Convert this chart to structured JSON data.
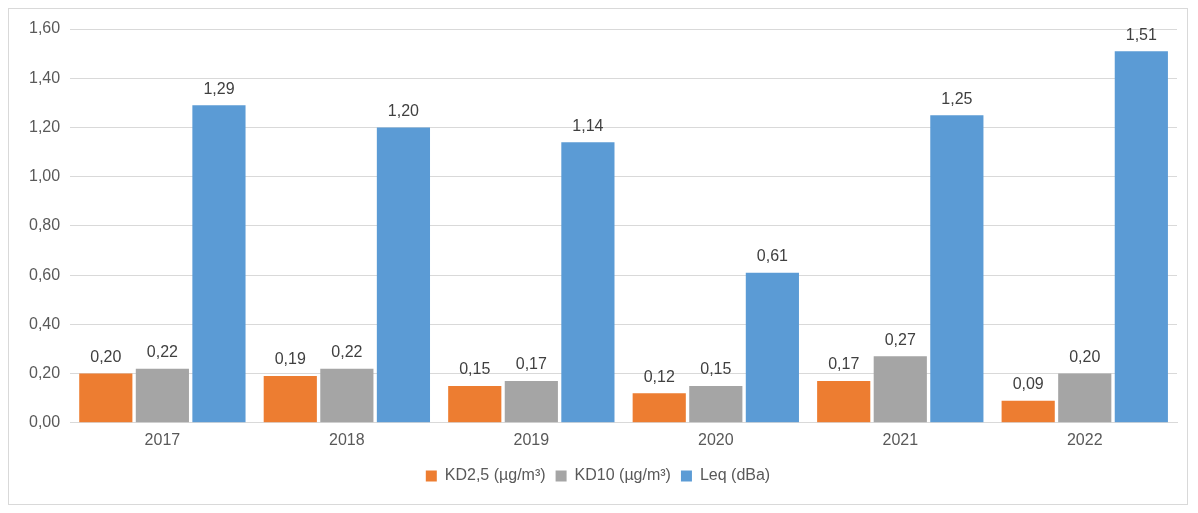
{
  "chart_data": {
    "type": "bar",
    "categories": [
      "2017",
      "2018",
      "2019",
      "2020",
      "2021",
      "2022"
    ],
    "series": [
      {
        "name": "KD2,5 (µg/m³)",
        "color": "#ed7d31",
        "values": [
          0.2,
          0.19,
          0.15,
          0.12,
          0.17,
          0.09
        ],
        "value_labels": [
          "0,20",
          "0,19",
          "0,15",
          "0,12",
          "0,17",
          "0,09"
        ]
      },
      {
        "name": "KD10 (µg/m³)",
        "color": "#a5a5a5",
        "values": [
          0.22,
          0.22,
          0.17,
          0.15,
          0.27,
          0.2
        ],
        "value_labels": [
          "0,22",
          "0,22",
          "0,17",
          "0,15",
          "0,27",
          "0,20"
        ]
      },
      {
        "name": "Leq (dBa)",
        "color": "#5b9bd5",
        "values": [
          1.29,
          1.2,
          1.14,
          0.61,
          1.25,
          1.51
        ],
        "value_labels": [
          "1,29",
          "1,20",
          "1,14",
          "0,61",
          "1,25",
          "1,51"
        ]
      }
    ],
    "ylim": [
      0,
      1.6
    ],
    "yticks": [
      {
        "value": 0,
        "label": "0,00"
      },
      {
        "value": 0.2,
        "label": "0,20"
      },
      {
        "value": 0.4,
        "label": "0,40"
      },
      {
        "value": 0.6,
        "label": "0,60"
      },
      {
        "value": 0.8,
        "label": "0,80"
      },
      {
        "value": 1.0,
        "label": "1,00"
      },
      {
        "value": 1.2,
        "label": "1,20"
      },
      {
        "value": 1.4,
        "label": "1,40"
      },
      {
        "value": 1.6,
        "label": "1,60"
      }
    ],
    "grid": "y",
    "legend": "bottom"
  }
}
